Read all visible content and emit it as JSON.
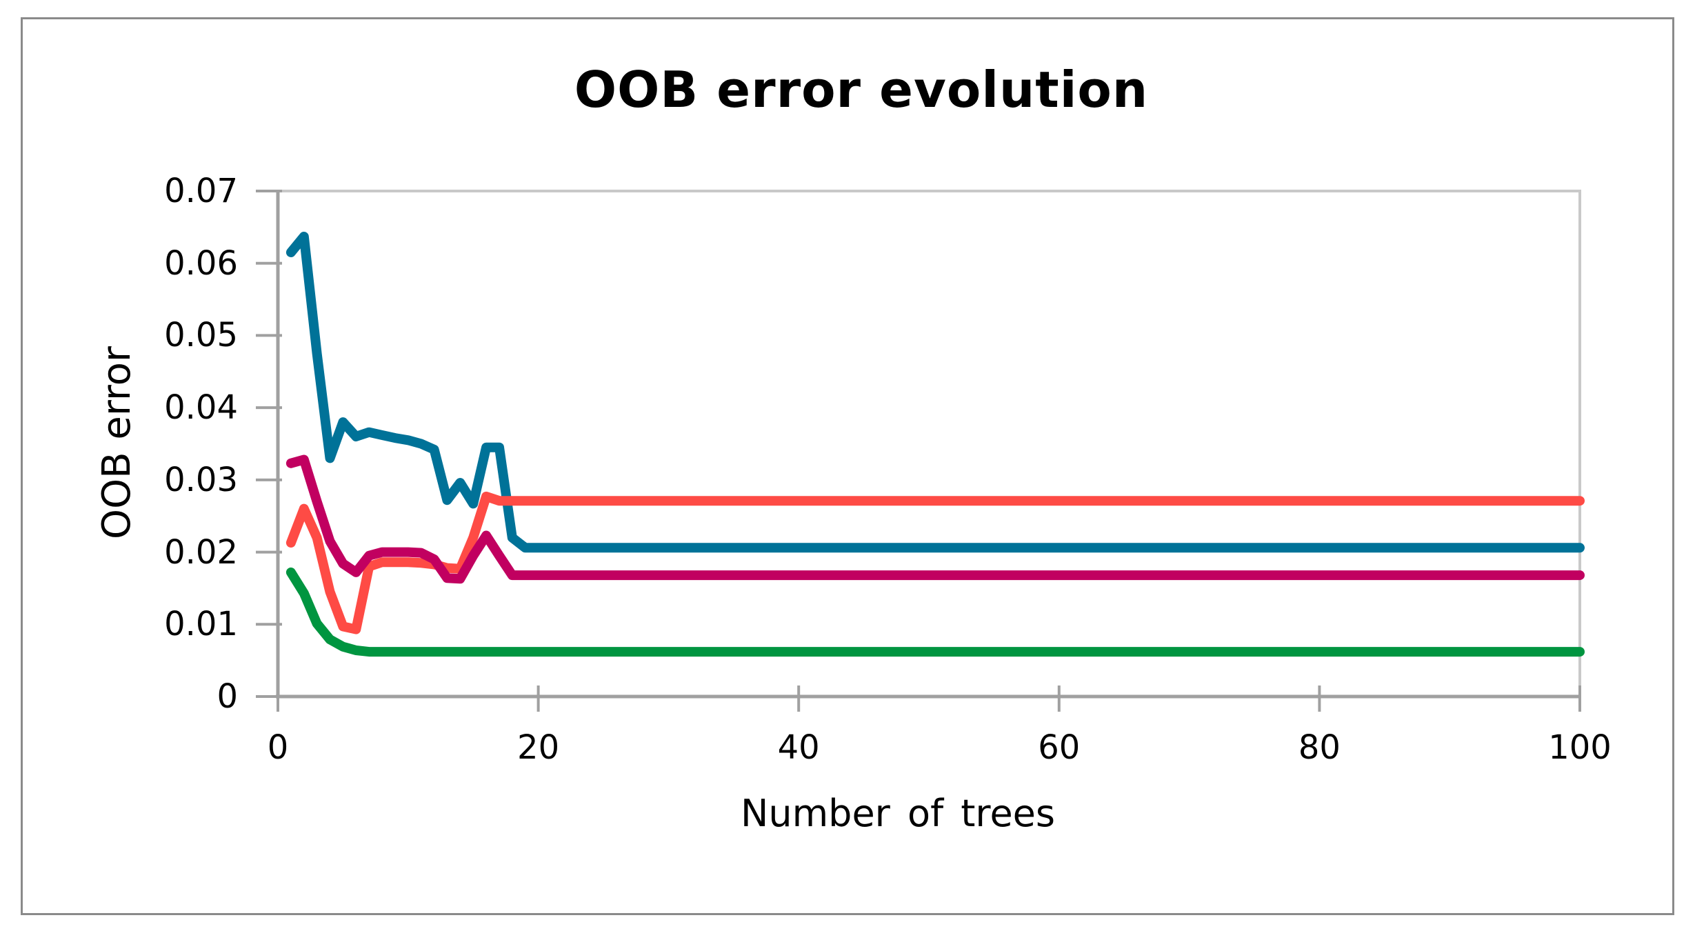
{
  "figure": {
    "background": "#ffffff",
    "border_color": "#8a8a8a"
  },
  "chart_data": {
    "type": "line",
    "title": "OOB error evolution",
    "xlabel": "Number of trees",
    "ylabel": "OOB error",
    "xlim": [
      0,
      100
    ],
    "ylim": [
      0,
      0.07
    ],
    "grid": "top-and-right-plot-border-only",
    "legend": "none",
    "axis_color": "#a0a0a0",
    "plot_border_color": "#c9c9c9",
    "text_color": "#000000",
    "line_width": 14,
    "x_ticks": [
      {
        "value": 0,
        "label": "0"
      },
      {
        "value": 20,
        "label": "20"
      },
      {
        "value": 40,
        "label": "40"
      },
      {
        "value": 60,
        "label": "60"
      },
      {
        "value": 80,
        "label": "80"
      },
      {
        "value": 100,
        "label": "100"
      }
    ],
    "y_ticks": [
      {
        "value": 0,
        "label": "0"
      },
      {
        "value": 0.01,
        "label": "0.01"
      },
      {
        "value": 0.02,
        "label": "0.02"
      },
      {
        "value": 0.03,
        "label": "0.03"
      },
      {
        "value": 0.04,
        "label": "0.04"
      },
      {
        "value": 0.05,
        "label": "0.05"
      },
      {
        "value": 0.06,
        "label": "0.06"
      },
      {
        "value": 0.07,
        "label": "0.07"
      }
    ],
    "series": [
      {
        "name": "green",
        "color": "#009540",
        "points": [
          [
            1,
            0.0172
          ],
          [
            2,
            0.0143
          ],
          [
            3,
            0.0101
          ],
          [
            4,
            0.0079
          ],
          [
            5,
            0.0069
          ],
          [
            6,
            0.0064
          ],
          [
            7,
            0.0062
          ],
          [
            8,
            0.0062
          ],
          [
            100,
            0.0062
          ]
        ]
      },
      {
        "name": "teal",
        "color": "#007298",
        "points": [
          [
            1,
            0.0615
          ],
          [
            2,
            0.0637
          ],
          [
            3,
            0.0475
          ],
          [
            4,
            0.033
          ],
          [
            5,
            0.038
          ],
          [
            6,
            0.036
          ],
          [
            7,
            0.0366
          ],
          [
            8,
            0.0362
          ],
          [
            9,
            0.0358
          ],
          [
            10,
            0.0355
          ],
          [
            11,
            0.035
          ],
          [
            12,
            0.0342
          ],
          [
            13,
            0.0272
          ],
          [
            14,
            0.0296
          ],
          [
            15,
            0.0267
          ],
          [
            16,
            0.0345
          ],
          [
            17,
            0.0345
          ],
          [
            18,
            0.022
          ],
          [
            19,
            0.0206
          ],
          [
            20,
            0.0206
          ],
          [
            100,
            0.0206
          ]
        ]
      },
      {
        "name": "red",
        "color": "#fe4b45",
        "points": [
          [
            1,
            0.0213
          ],
          [
            2,
            0.026
          ],
          [
            3,
            0.022
          ],
          [
            4,
            0.0145
          ],
          [
            5,
            0.0097
          ],
          [
            6,
            0.0093
          ],
          [
            7,
            0.018
          ],
          [
            8,
            0.0186
          ],
          [
            9,
            0.0186
          ],
          [
            10,
            0.0186
          ],
          [
            11,
            0.0185
          ],
          [
            12,
            0.0183
          ],
          [
            13,
            0.0178
          ],
          [
            14,
            0.0177
          ],
          [
            15,
            0.022
          ],
          [
            16,
            0.0277
          ],
          [
            17,
            0.0271
          ],
          [
            18,
            0.0271
          ],
          [
            100,
            0.0271
          ]
        ]
      },
      {
        "name": "magenta",
        "color": "#c10060",
        "points": [
          [
            1,
            0.0323
          ],
          [
            2,
            0.0328
          ],
          [
            3,
            0.027
          ],
          [
            4,
            0.0215
          ],
          [
            5,
            0.0184
          ],
          [
            6,
            0.0172
          ],
          [
            7,
            0.0195
          ],
          [
            8,
            0.02
          ],
          [
            9,
            0.02
          ],
          [
            10,
            0.02
          ],
          [
            11,
            0.0199
          ],
          [
            12,
            0.019
          ],
          [
            13,
            0.0164
          ],
          [
            14,
            0.0163
          ],
          [
            15,
            0.0195
          ],
          [
            16,
            0.0223
          ],
          [
            17,
            0.0195
          ],
          [
            18,
            0.0168
          ],
          [
            100,
            0.0168
          ]
        ]
      }
    ]
  }
}
